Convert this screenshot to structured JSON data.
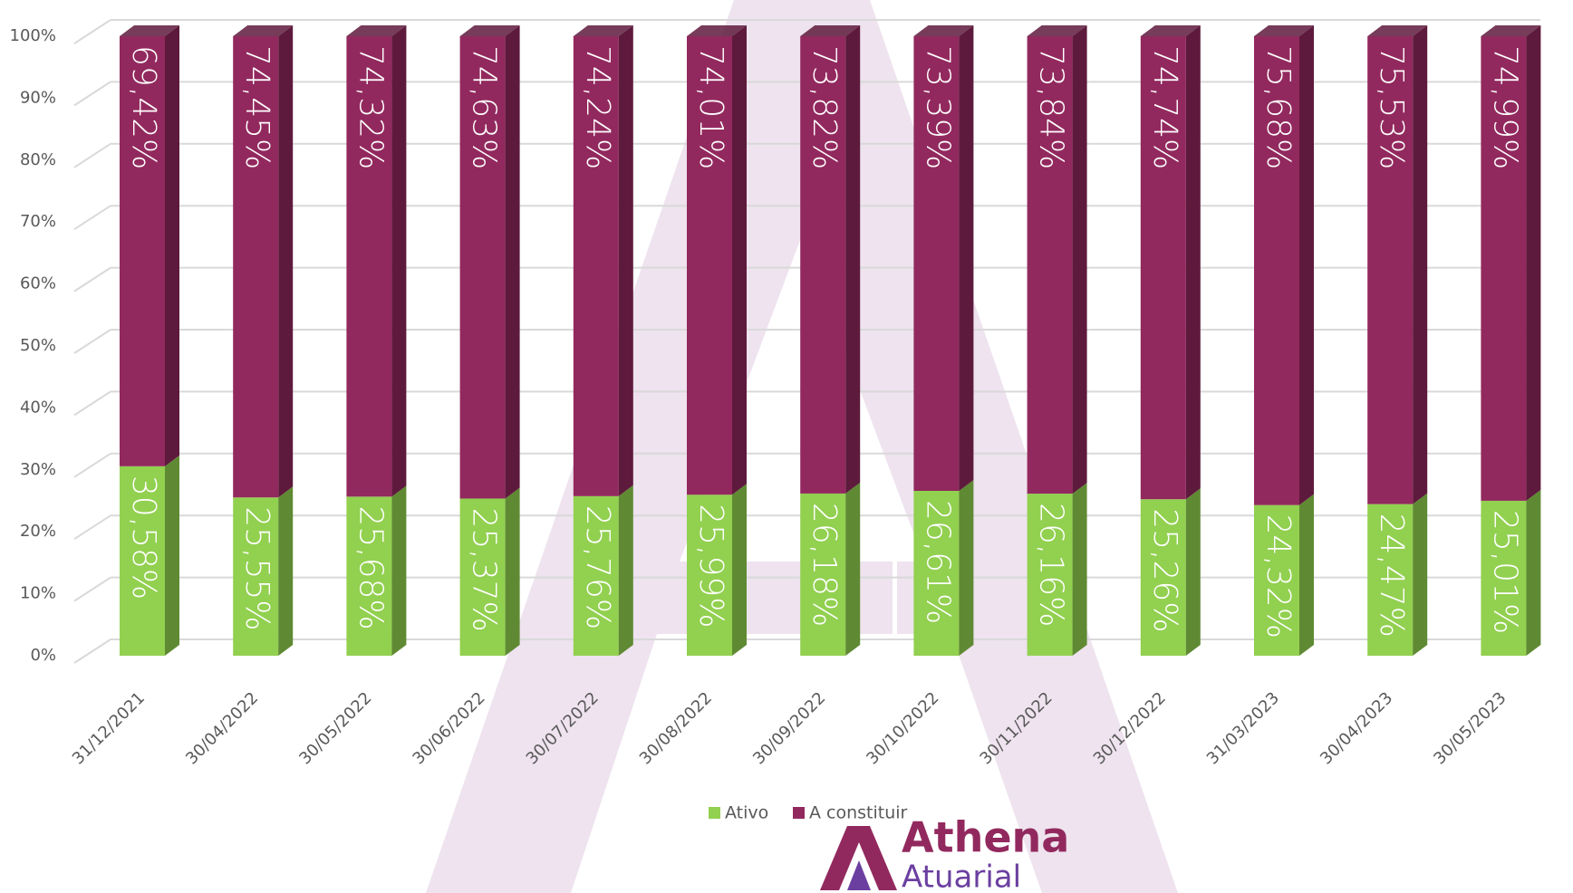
{
  "chart_data": {
    "type": "stacked-bar-3d",
    "categories": [
      "31/12/2021",
      "30/04/2022",
      "30/05/2022",
      "30/06/2022",
      "30/07/2022",
      "30/08/2022",
      "30/09/2022",
      "30/10/2022",
      "30/11/2022",
      "30/12/2022",
      "31/03/2023",
      "30/04/2023",
      "30/05/2023"
    ],
    "series": [
      {
        "name": "Ativo",
        "color": "#92d050",
        "side_color": "#5f8a33",
        "values": [
          30.58,
          25.55,
          25.68,
          25.37,
          25.76,
          25.99,
          26.18,
          26.61,
          26.16,
          25.26,
          24.32,
          24.47,
          25.01
        ],
        "value_labels": [
          "30,58%",
          "25,55%",
          "25,68%",
          "25,37%",
          "25,76%",
          "25,99%",
          "26,18%",
          "26,61%",
          "26,16%",
          "25,26%",
          "24,32%",
          "24,47%",
          "25,01%"
        ]
      },
      {
        "name": "A constituir",
        "color": "#92295e",
        "side_color": "#5e1a3c",
        "values": [
          69.42,
          74.45,
          74.32,
          74.63,
          74.24,
          74.01,
          73.82,
          73.39,
          73.84,
          74.74,
          75.68,
          75.53,
          74.99
        ],
        "value_labels": [
          "69,42%",
          "74,45%",
          "74,32%",
          "74,63%",
          "74,24%",
          "74,01%",
          "73,82%",
          "73,39%",
          "73,84%",
          "74,74%",
          "75,68%",
          "75,53%",
          "74,99%"
        ]
      }
    ],
    "ylim": [
      0,
      100
    ],
    "yticks": [
      {
        "value": 0,
        "label": "0%"
      },
      {
        "value": 10,
        "label": "10%"
      },
      {
        "value": 20,
        "label": "20%"
      },
      {
        "value": 30,
        "label": "30%"
      },
      {
        "value": 40,
        "label": "40%"
      },
      {
        "value": 50,
        "label": "50%"
      },
      {
        "value": 60,
        "label": "60%"
      },
      {
        "value": 70,
        "label": "70%"
      },
      {
        "value": 80,
        "label": "80%"
      },
      {
        "value": 90,
        "label": "90%"
      },
      {
        "value": 100,
        "label": "100%"
      }
    ],
    "grid": true,
    "legend": "bottom"
  },
  "logo": {
    "name": "Athena",
    "subtitle": "Atuarial"
  }
}
